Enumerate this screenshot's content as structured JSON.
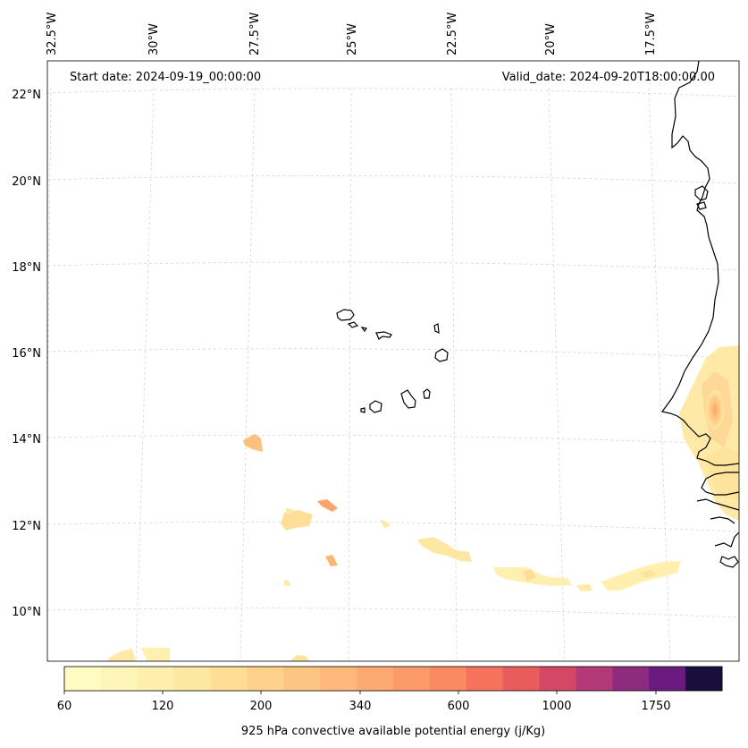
{
  "annotations": {
    "start_date": "Start date: 2024-09-19_00:00:00",
    "valid_date": "Valid_date: 2024-09-20T18:00:00.00"
  },
  "lon_labels": [
    "32.5°W",
    "30°W",
    "27.5°W",
    "25°W",
    "22.5°W",
    "20°W",
    "17.5°W"
  ],
  "lat_labels": [
    "22°N",
    "20°N",
    "18°N",
    "16°N",
    "14°N",
    "12°N",
    "10°N"
  ],
  "colorbar": {
    "label": "925 hPa convective available potential energy (j/Kg)",
    "tick_labels": [
      "60",
      "120",
      "200",
      "340",
      "600",
      "1000",
      "1750"
    ],
    "colors": [
      "#fffbc2",
      "#fef5b8",
      "#feefac",
      "#fee7a0",
      "#fedd94",
      "#fed28a",
      "#fdc582",
      "#fdb87a",
      "#fdaa72",
      "#fc9a6a",
      "#fa8a62",
      "#f4735a",
      "#e85d5c",
      "#d44767",
      "#b33a76",
      "#8e2b7e",
      "#6a1b80",
      "#1a0f3c"
    ]
  },
  "chart_data": {
    "type": "map",
    "projection": "conic",
    "field": "925 hPa convective available potential energy",
    "units": "j/Kg",
    "lon_range": [
      "33.5°W",
      "15.5°W"
    ],
    "lat_range": [
      "9°N",
      "22.5°N"
    ],
    "gridlines": true,
    "colorbar_levels": [
      60,
      120,
      200,
      340,
      600,
      1000,
      1750
    ]
  }
}
